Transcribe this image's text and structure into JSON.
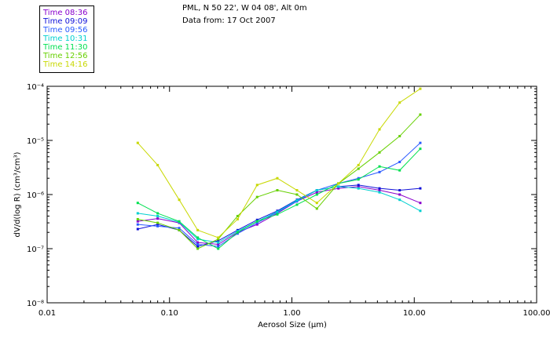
{
  "header": {
    "location": "PML, N 50 22', W 04 08', Alt 0m",
    "date": "Data from: 17 Oct 2007"
  },
  "legend": [
    {
      "label": "Time 08:36",
      "color": "#8800cc"
    },
    {
      "label": "Time 09:09",
      "color": "#1010d8"
    },
    {
      "label": "Time 09:56",
      "color": "#2a5aff"
    },
    {
      "label": "Time 10:31",
      "color": "#00d0d0"
    },
    {
      "label": "Time 11:30",
      "color": "#00e050"
    },
    {
      "label": "Time 12:56",
      "color": "#66d000"
    },
    {
      "label": "Time 14:16",
      "color": "#c8d800"
    }
  ],
  "chart_data": {
    "type": "line",
    "title": "",
    "xlabel": "Aerosol Size (μm)",
    "ylabel": "dV/d(log R) (cm³/cm³)",
    "xscale": "log",
    "yscale": "log",
    "xlim": [
      0.01,
      100
    ],
    "ylim": [
      1e-08,
      0.0001
    ],
    "x_ticks": [
      0.01,
      0.1,
      1,
      10,
      100
    ],
    "x_tick_labels": [
      "0.01",
      "0.10",
      "1.00",
      "10.00",
      "100.00"
    ],
    "y_ticks": [
      1e-08,
      1e-07,
      1e-06,
      1e-05,
      0.0001
    ],
    "y_tick_labels": [
      "10⁻⁸",
      "10⁻⁷",
      "10⁻⁶",
      "10⁻⁵",
      "10⁻⁴"
    ],
    "x": [
      0.055,
      0.08,
      0.12,
      0.17,
      0.25,
      0.36,
      0.52,
      0.76,
      1.1,
      1.6,
      2.4,
      3.5,
      5.2,
      7.6,
      11.2
    ],
    "series": [
      {
        "name": "Time 08:36",
        "color": "#8800cc",
        "values": [
          3.2e-07,
          3.6e-07,
          3e-07,
          1.3e-07,
          1.2e-07,
          2e-07,
          2.8e-07,
          4.5e-07,
          7.5e-07,
          1.1e-06,
          1.3e-06,
          1.4e-06,
          1.2e-06,
          1e-06,
          7e-07
        ]
      },
      {
        "name": "Time 09:09",
        "color": "#1010d8",
        "values": [
          2.3e-07,
          2.8e-07,
          2.2e-07,
          1.1e-07,
          1.4e-07,
          2.2e-07,
          3.4e-07,
          5e-07,
          8e-07,
          1.2e-06,
          1.4e-06,
          1.5e-06,
          1.3e-06,
          1.2e-06,
          1.3e-06
        ]
      },
      {
        "name": "Time 09:56",
        "color": "#2a5aff",
        "values": [
          2.8e-07,
          2.6e-07,
          2.4e-07,
          1.2e-07,
          1.1e-07,
          1.9e-07,
          3e-07,
          4.7e-07,
          7.5e-07,
          1.2e-06,
          1.6e-06,
          2e-06,
          2.6e-06,
          4e-06,
          9e-06
        ]
      },
      {
        "name": "Time 10:31",
        "color": "#00d0d0",
        "values": [
          4.5e-07,
          4e-07,
          3.1e-07,
          1.5e-07,
          1.3e-07,
          2.1e-07,
          3.2e-07,
          4.8e-07,
          7.8e-07,
          1.2e-06,
          1.4e-06,
          1.3e-06,
          1.1e-06,
          8e-07,
          5e-07
        ]
      },
      {
        "name": "Time 11:30",
        "color": "#00e050",
        "values": [
          7e-07,
          4.5e-07,
          3.2e-07,
          1.6e-07,
          1e-07,
          2e-07,
          3.2e-07,
          4.3e-07,
          6.5e-07,
          1e-06,
          1.6e-06,
          1.9e-06,
          3.3e-06,
          2.8e-06,
          7e-06
        ]
      },
      {
        "name": "Time 12:56",
        "color": "#66d000",
        "values": [
          3.5e-07,
          3e-07,
          2.2e-07,
          1e-07,
          1.5e-07,
          4e-07,
          9e-07,
          1.2e-06,
          1e-06,
          5.5e-07,
          1.6e-06,
          3e-06,
          6e-06,
          1.2e-05,
          3e-05
        ]
      },
      {
        "name": "Time 14:16",
        "color": "#c8d800",
        "values": [
          9e-06,
          3.5e-06,
          8e-07,
          2.2e-07,
          1.6e-07,
          3.5e-07,
          1.5e-06,
          2e-06,
          1.2e-06,
          7e-07,
          1.6e-06,
          3.5e-06,
          1.6e-05,
          5e-05,
          9e-05
        ]
      }
    ]
  }
}
